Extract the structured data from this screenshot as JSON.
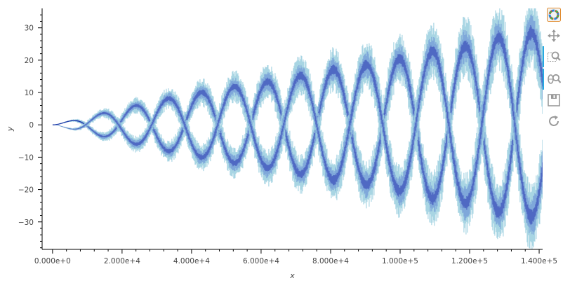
{
  "chart_data": {
    "type": "area",
    "title": "",
    "xlabel": "x",
    "ylabel": "y",
    "xlim": [
      -3000,
      141000
    ],
    "ylim": [
      -38.5,
      36
    ],
    "x_ticks": [
      0,
      20000,
      40000,
      60000,
      80000,
      100000,
      120000,
      140000
    ],
    "x_tick_labels": [
      "0.000e+0",
      "2.000e+4",
      "4.000e+4",
      "6.000e+4",
      "8.000e+4",
      "1.000e+5",
      "1.200e+5",
      "1.400e+5"
    ],
    "y_ticks": [
      -30,
      -20,
      -10,
      0,
      10,
      20,
      30
    ],
    "y_tick_labels": [
      "−30",
      "−20",
      "−10",
      "0",
      "10",
      "20",
      "30"
    ],
    "grid": false,
    "legend": "none",
    "series": [
      {
        "envelope_x": [
          0,
          5000,
          10000,
          20000,
          30000,
          40000,
          50000,
          60000,
          70000,
          80000,
          90000,
          100000,
          110000,
          120000,
          130000,
          137000,
          141000
        ],
        "envelope_amplitude": [
          0,
          1.2,
          2.5,
          5,
          7.5,
          9.5,
          11.5,
          13,
          15,
          17,
          18.5,
          20.5,
          23,
          24.5,
          27.5,
          28.5,
          28.5
        ],
        "oscillation_period": 19000,
        "noise_halfwidth_outer": [
          0,
          0.3,
          1.0,
          2.2,
          3.3,
          4.2,
          5.0,
          5.7,
          6.4,
          7.1,
          7.8,
          8.5,
          9.2,
          9.8,
          10.4,
          10.8,
          11.0
        ]
      }
    ],
    "colors": {
      "outer": "#9ed0e0",
      "middle": "#7aa3d8",
      "inner": "#4a62c0",
      "core": "#1c3aa8"
    }
  },
  "toolbar": {
    "tools": [
      {
        "name": "bokeh-logo-icon",
        "active": false
      },
      {
        "name": "pan-icon",
        "active": false
      },
      {
        "name": "box-zoom-icon",
        "active": true
      },
      {
        "name": "wheel-zoom-icon",
        "active": true
      },
      {
        "name": "save-icon",
        "active": false
      },
      {
        "name": "reset-icon",
        "active": false
      }
    ]
  }
}
